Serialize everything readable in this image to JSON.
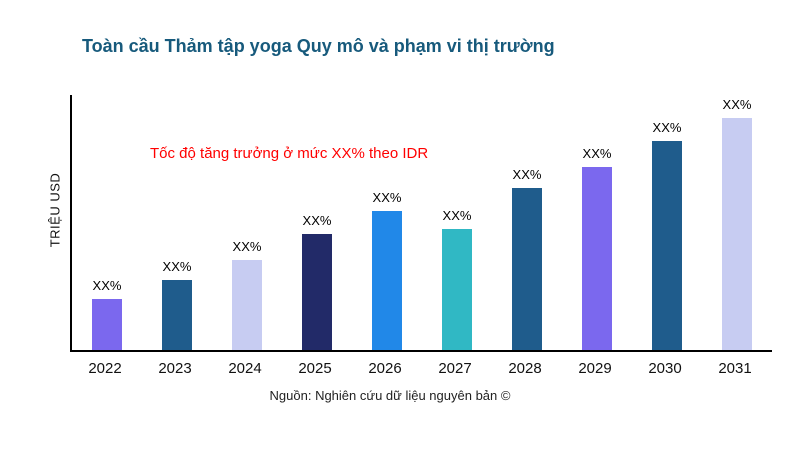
{
  "header": {
    "title": "Toàn cầu Thảm tập yoga Quy mô và phạm vi thị trường",
    "title_color": "#175a7c"
  },
  "annotation": {
    "text": "Tốc độ tăng trưởng ở mức XX% theo IDR",
    "color": "#ff0000"
  },
  "footer": {
    "source": "Nguồn: Nghiên cứu dữ liệu nguyên bản ©"
  },
  "chart_data": {
    "type": "bar",
    "title": "Toàn cầu Thảm tập yoga Quy mô và phạm vi thị trường",
    "xlabel": "",
    "ylabel": "TRIỆU USD",
    "categories": [
      "2022",
      "2023",
      "2024",
      "2025",
      "2026",
      "2027",
      "2028",
      "2029",
      "2030",
      "2031"
    ],
    "values": [
      22,
      30,
      39,
      50,
      60,
      52,
      70,
      79,
      90,
      100
    ],
    "value_note": "relative heights, actual values masked as XX% in source image",
    "bar_labels": [
      "XX%",
      "XX%",
      "XX%",
      "XX%",
      "XX%",
      "XX%",
      "XX%",
      "XX%",
      "XX%",
      "XX%"
    ],
    "bar_colors": [
      "#7b68ee",
      "#1f5c8c",
      "#c7ccf2",
      "#222a68",
      "#2188e8",
      "#30b8c4",
      "#1f5c8c",
      "#7b68ee",
      "#1f5c8c",
      "#c7ccf2"
    ],
    "ylim": [
      0,
      110
    ],
    "grid": false,
    "legend": "none",
    "annotation": "Tốc độ tăng trưởng ở mức XX% theo IDR"
  }
}
